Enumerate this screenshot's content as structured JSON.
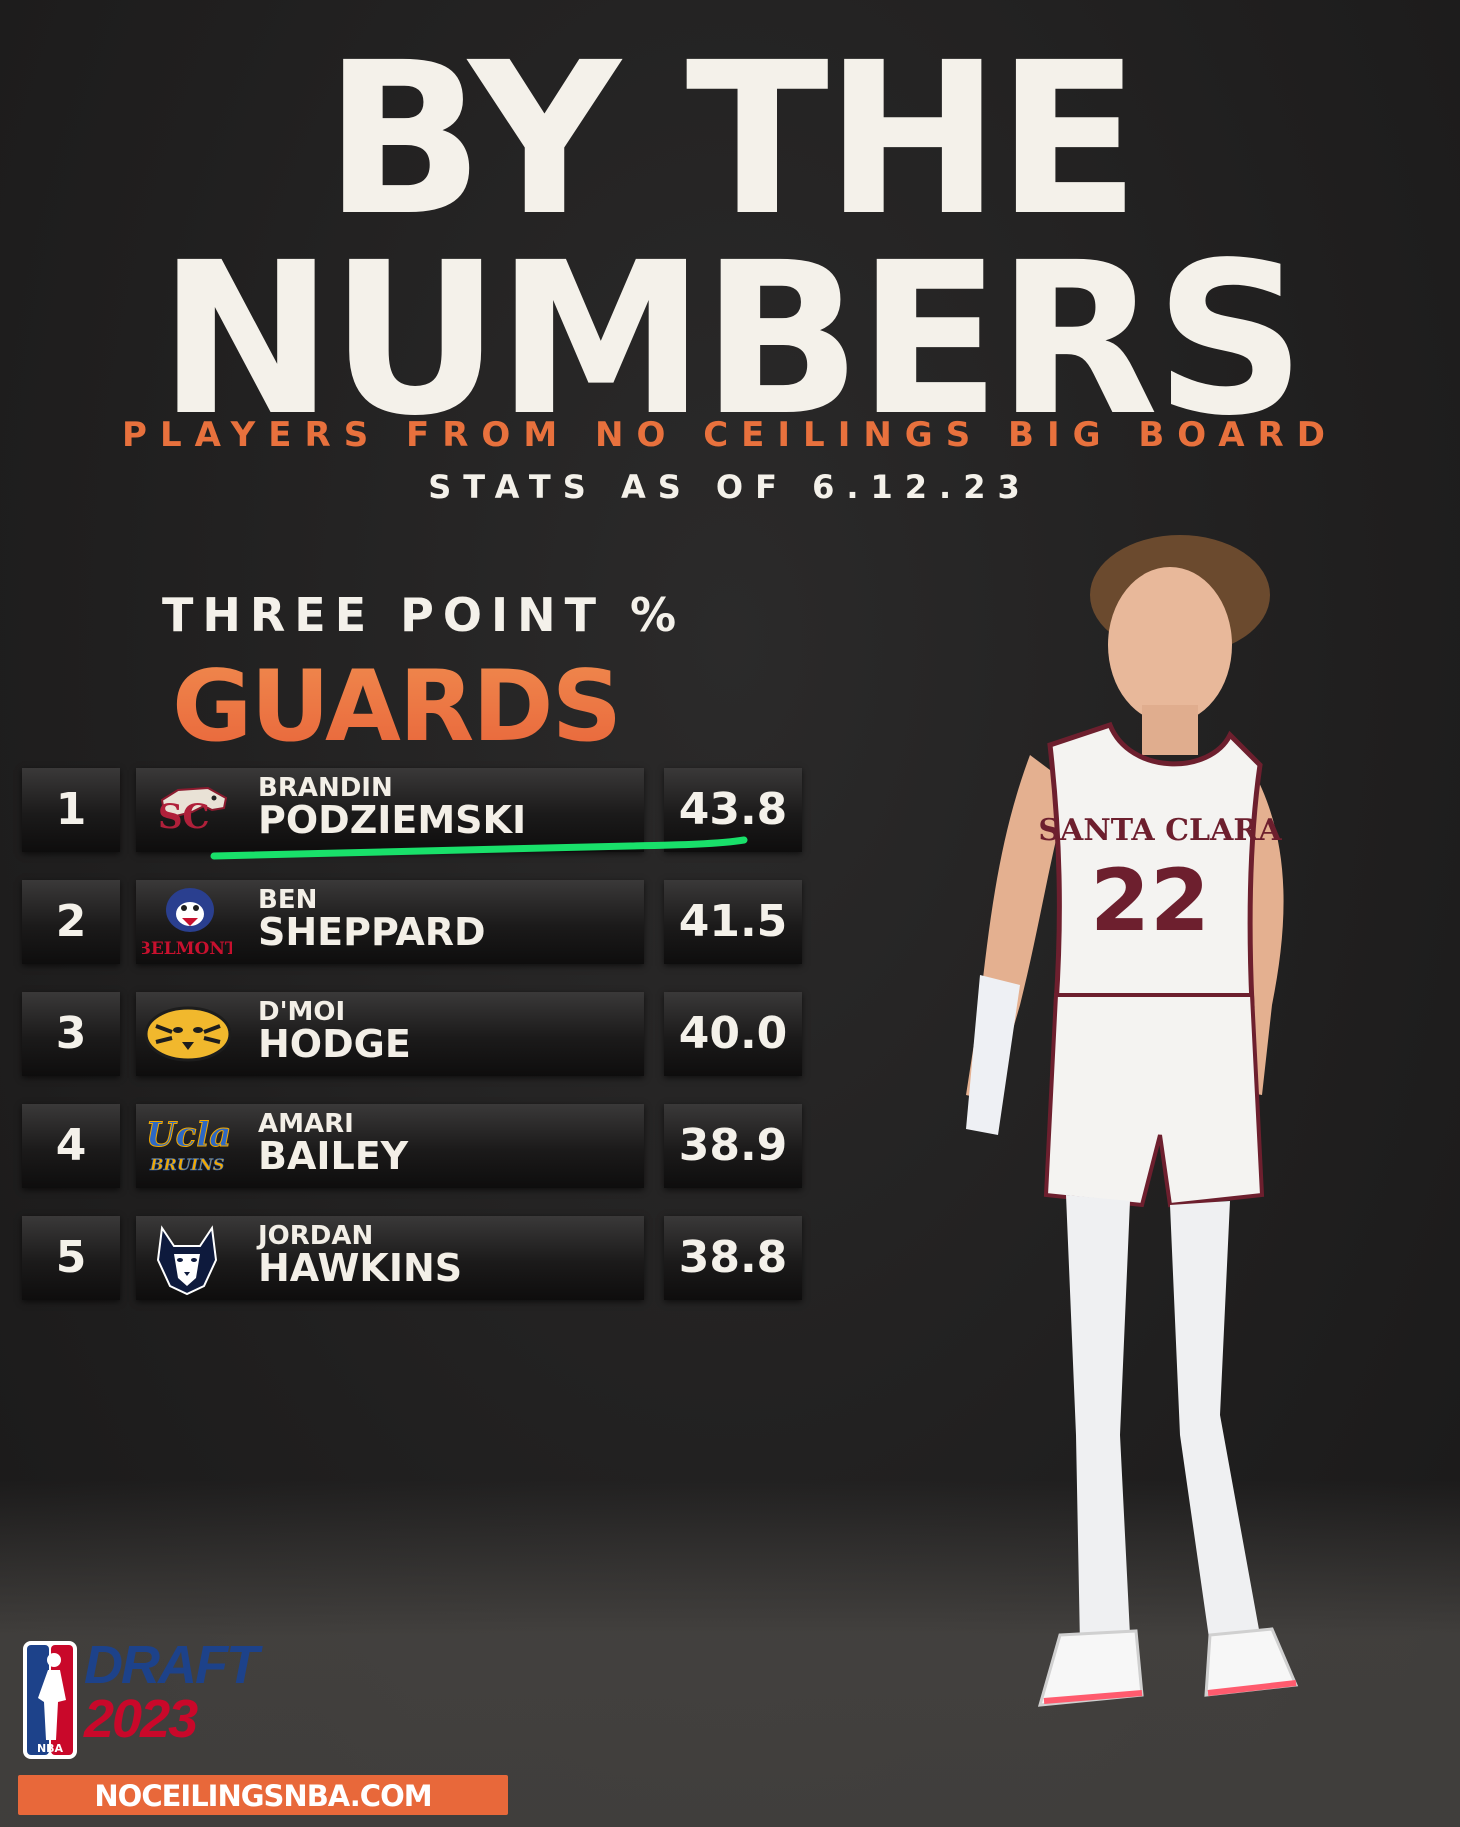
{
  "title": {
    "line1": "BY THE",
    "line2": "NUMBERS"
  },
  "subtitle": {
    "line1": "PLAYERS FROM NO CEILINGS BIG BOARD",
    "line2": "STATS AS OF 6.12.23"
  },
  "stat_label": "THREE POINT %",
  "position_label": "GUARDS",
  "colors": {
    "accent_orange": "#e8683a",
    "highlight_green": "#19e06a",
    "text_light": "#f4f1ea"
  },
  "rankings": [
    {
      "rank": "1",
      "first_name": "BRANDIN",
      "last_name": "PODZIEMSKI",
      "value": "43.8",
      "logo": "santa-clara-bronco-logo",
      "highlighted": true
    },
    {
      "rank": "2",
      "first_name": "BEN",
      "last_name": "SHEPPARD",
      "value": "41.5",
      "logo": "belmont-bruin-logo",
      "logo_text": "BELMONT"
    },
    {
      "rank": "3",
      "first_name": "D'MOI",
      "last_name": "HODGE",
      "value": "40.0",
      "logo": "missouri-tiger-logo"
    },
    {
      "rank": "4",
      "first_name": "AMARI",
      "last_name": "BAILEY",
      "value": "38.9",
      "logo": "ucla-bruins-logo",
      "logo_text_1": "Ucla",
      "logo_text_2": "BRUINS"
    },
    {
      "rank": "5",
      "first_name": "JORDAN",
      "last_name": "HAWKINS",
      "value": "38.8",
      "logo": "uconn-husky-logo"
    }
  ],
  "player_image": {
    "jersey_text": "SANTA CLARA",
    "jersey_number": "22"
  },
  "footer": {
    "nba_text": "NBA",
    "draft_label": "DRAFT",
    "draft_year": "2023",
    "website": "NOCEILINGSNBA.COM"
  }
}
